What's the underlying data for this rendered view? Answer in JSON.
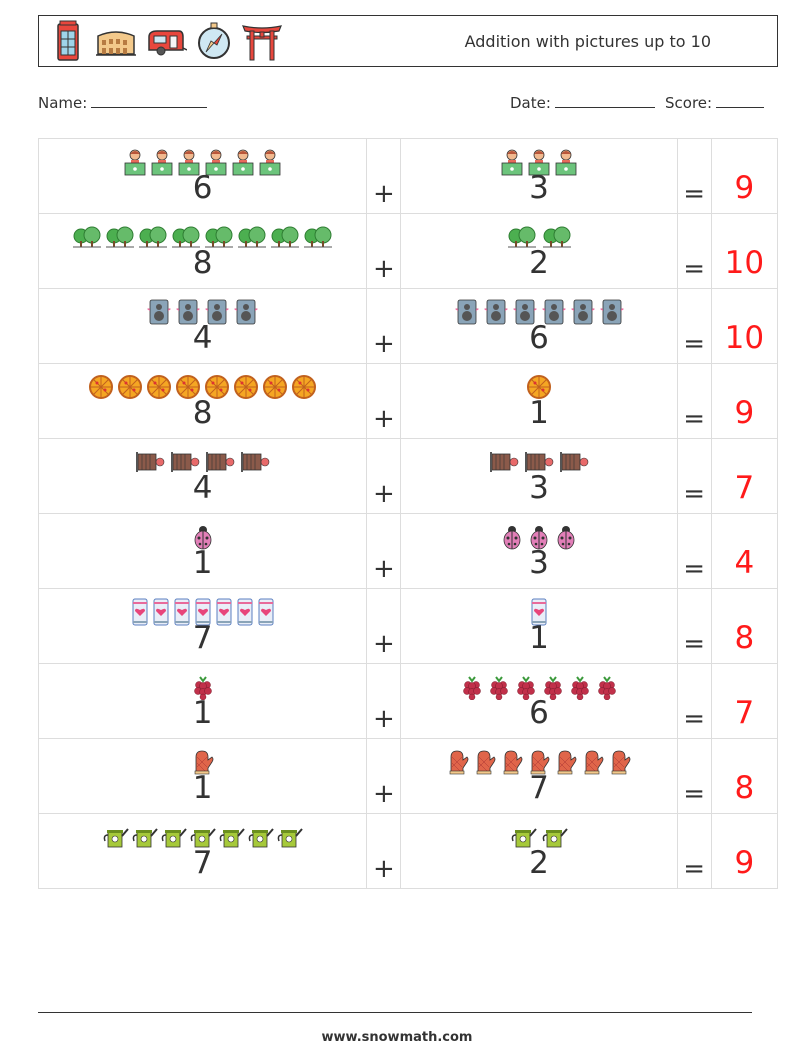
{
  "header": {
    "title": "Addition with pictures up to 10",
    "icons": [
      "phone-booth-icon",
      "colosseum-icon",
      "caravan-icon",
      "compass-icon",
      "torii-gate-icon"
    ]
  },
  "meta": {
    "name_label": "Name:",
    "date_label": "Date:",
    "score_label": "Score:"
  },
  "symbols": {
    "plus": "+",
    "equals": "="
  },
  "problems": [
    {
      "a": "6",
      "b": "3",
      "result": "9",
      "icon": "person-at-laptop"
    },
    {
      "a": "8",
      "b": "2",
      "result": "10",
      "icon": "trees"
    },
    {
      "a": "4",
      "b": "6",
      "result": "10",
      "icon": "speaker"
    },
    {
      "a": "8",
      "b": "1",
      "result": "9",
      "icon": "pizza"
    },
    {
      "a": "4",
      "b": "3",
      "result": "7",
      "icon": "paper-scroll"
    },
    {
      "a": "1",
      "b": "3",
      "result": "4",
      "icon": "ladybug"
    },
    {
      "a": "7",
      "b": "1",
      "result": "8",
      "icon": "heart-smartphone"
    },
    {
      "a": "1",
      "b": "6",
      "result": "7",
      "icon": "raspberry"
    },
    {
      "a": "1",
      "b": "7",
      "result": "8",
      "icon": "oven-mitt"
    },
    {
      "a": "7",
      "b": "2",
      "result": "9",
      "icon": "watering-can"
    }
  ],
  "colors": {
    "answer": "#ff1a1a",
    "border": "#dddddd",
    "text": "#333333"
  },
  "footer": {
    "url": "www.snowmath.com"
  }
}
